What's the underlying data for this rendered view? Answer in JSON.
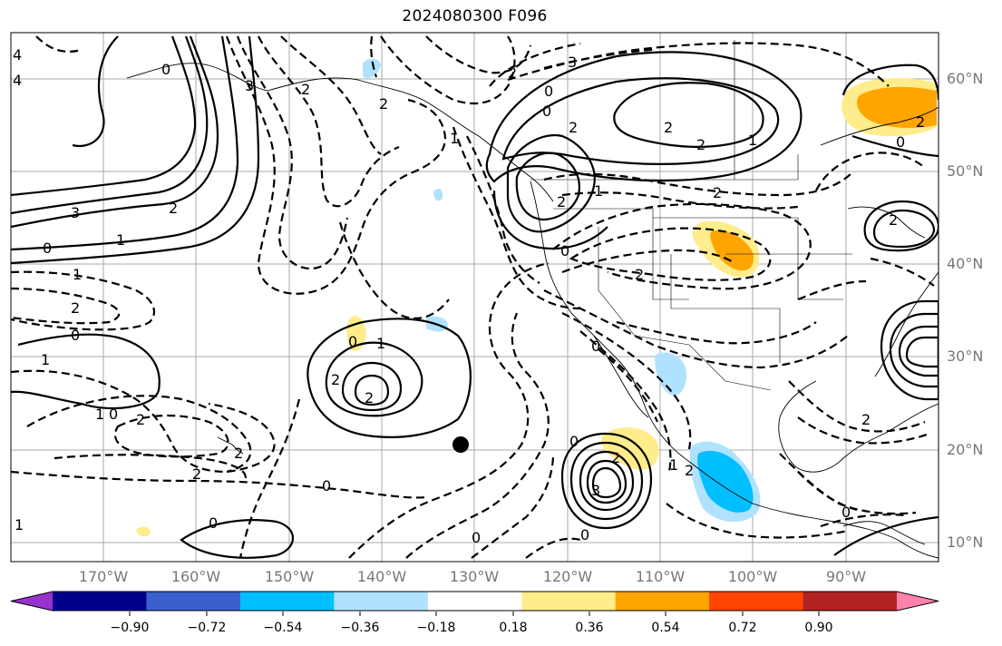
{
  "title": "2024080300 F096",
  "map": {
    "projection": "PlateCarree",
    "extent": {
      "lon_min": -180,
      "lon_max": -80,
      "lat_min": 8,
      "lat_max": 65
    },
    "grid_lines": true,
    "field": "contours with shaded anomaly",
    "marker": {
      "lon": -131.9,
      "lat": 20.5,
      "symbol": "filled-circle"
    }
  },
  "lat_ticks": [
    "10°N",
    "20°N",
    "30°N",
    "40°N",
    "50°N",
    "60°N"
  ],
  "lon_ticks": [
    "170°W",
    "160°W",
    "150°W",
    "140°W",
    "130°W",
    "120°W",
    "110°W",
    "100°W",
    "90°W"
  ],
  "contour_labels": [
    "4",
    "4",
    "3",
    "0",
    "1",
    "2",
    "3",
    "0",
    "1",
    "2",
    "0",
    "1",
    "0",
    "1",
    "2",
    "2",
    "2",
    "1",
    "0",
    "0",
    "2",
    "2",
    "2",
    "2",
    "1",
    "0",
    "1",
    "2",
    "0",
    "2",
    "3",
    "0",
    "2",
    "2",
    "1",
    "2",
    "0",
    "2",
    "2",
    "0",
    "0",
    "0",
    "0",
    "1",
    "0",
    "2",
    "3",
    "0",
    "2",
    "2",
    "2",
    "1",
    "0",
    "2",
    "2",
    "2"
  ],
  "colorbar": {
    "extend": "both",
    "colors": [
      "#9932cc",
      "#00008b",
      "#3a5fcd",
      "#00bfff",
      "#b0e2ff",
      "#ffffff",
      "#ffec8b",
      "#ffa500",
      "#ff4500",
      "#b22222",
      "#ff82ab"
    ],
    "tick_labels": [
      "−0.90",
      "−0.72",
      "−0.54",
      "−0.36",
      "−0.18",
      "0.18",
      "0.36",
      "0.54",
      "0.72",
      "0.90"
    ],
    "tick_values": [
      -0.9,
      -0.72,
      -0.54,
      -0.36,
      -0.18,
      0.18,
      0.36,
      0.54,
      0.72,
      0.9
    ]
  }
}
